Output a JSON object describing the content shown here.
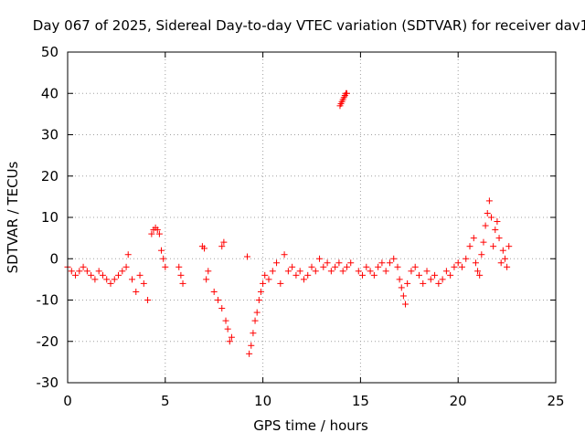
{
  "chart_data": {
    "type": "scatter",
    "title": "Day 067 of 2025, Sidereal Day-to-day VTEC variation (SDTVAR) for receiver dav1",
    "xlabel": "GPS time / hours",
    "ylabel": "SDTVAR / TECUs",
    "xlim": [
      0,
      25
    ],
    "ylim": [
      -30,
      50
    ],
    "xticks": [
      0,
      5,
      10,
      15,
      20,
      25
    ],
    "yticks": [
      -30,
      -20,
      -10,
      0,
      10,
      20,
      30,
      40,
      50
    ],
    "grid": true,
    "marker": "+",
    "series_color": "#ff0000",
    "segments": [
      {
        "x": [
          0.0,
          0.2,
          0.4,
          0.6,
          0.8,
          1.0,
          1.2,
          1.4,
          1.6,
          1.8,
          2.0,
          2.2,
          2.4,
          2.6,
          2.8,
          3.0
        ],
        "y": [
          -2,
          -3,
          -4,
          -3,
          -2,
          -3,
          -4,
          -5,
          -3,
          -4,
          -5,
          -6,
          -5,
          -4,
          -3,
          -2
        ]
      },
      {
        "x": [
          3.1,
          3.3,
          3.5,
          3.7,
          3.9,
          4.1
        ],
        "y": [
          1,
          -5,
          -8,
          -4,
          -6,
          -10
        ]
      },
      {
        "x": [
          4.3,
          4.4,
          4.5,
          4.6,
          4.7,
          4.8,
          4.9,
          5.0
        ],
        "y": [
          6,
          7,
          7.5,
          7,
          6,
          2,
          0,
          -2
        ]
      },
      {
        "x": [
          5.7,
          5.8,
          5.9
        ],
        "y": [
          -2,
          -4,
          -6
        ]
      },
      {
        "x": [
          6.9,
          7.0,
          7.1,
          7.2
        ],
        "y": [
          3,
          2.5,
          -5,
          -3
        ]
      },
      {
        "x": [
          7.5,
          7.7,
          7.9
        ],
        "y": [
          -8,
          -10,
          -12
        ]
      },
      {
        "x": [
          7.9,
          8.0
        ],
        "y": [
          3,
          4
        ]
      },
      {
        "x": [
          8.1,
          8.2,
          8.3,
          8.4
        ],
        "y": [
          -15,
          -17,
          -20,
          -19
        ]
      },
      {
        "x": [
          9.2
        ],
        "y": [
          0.5
        ]
      },
      {
        "x": [
          9.3,
          9.4,
          9.5,
          9.6,
          9.7,
          9.8,
          9.9,
          10.0
        ],
        "y": [
          -23,
          -21,
          -18,
          -15,
          -13,
          -10,
          -8,
          -6
        ]
      },
      {
        "x": [
          10.1,
          10.3,
          10.5,
          10.7,
          10.9,
          11.1,
          11.3,
          11.5,
          11.7,
          11.9,
          12.1,
          12.3,
          12.5,
          12.7
        ],
        "y": [
          -4,
          -5,
          -3,
          -1,
          -6,
          1,
          -3,
          -2,
          -4,
          -3,
          -5,
          -4,
          -2,
          -3
        ]
      },
      {
        "x": [
          12.9,
          13.1,
          13.3,
          13.5,
          13.7,
          13.9,
          14.1,
          14.3,
          14.5
        ],
        "y": [
          0,
          -2,
          -1,
          -3,
          -2,
          -1,
          -3,
          -2,
          -1
        ]
      },
      {
        "x": [
          13.95,
          14.0,
          14.05,
          14.1,
          14.15,
          14.2,
          14.25,
          14.3
        ],
        "y": [
          37,
          37.5,
          38,
          38.5,
          39,
          39.5,
          40,
          40
        ]
      },
      {
        "x": [
          14.9,
          15.1,
          15.3,
          15.5,
          15.7,
          15.9,
          16.1,
          16.3,
          16.5,
          16.7
        ],
        "y": [
          -3,
          -4,
          -2,
          -3,
          -4,
          -2,
          -1,
          -3,
          -1,
          0
        ]
      },
      {
        "x": [
          16.9,
          17.0,
          17.1,
          17.2,
          17.3,
          17.4,
          17.6,
          17.8,
          18.0,
          18.2
        ],
        "y": [
          -2,
          -5,
          -7,
          -9,
          -11,
          -6,
          -3,
          -2,
          -4,
          -6
        ]
      },
      {
        "x": [
          18.4,
          18.6,
          18.8,
          19.0,
          19.2,
          19.4,
          19.6,
          19.8,
          20.0,
          20.2,
          20.4,
          20.6,
          20.8
        ],
        "y": [
          -3,
          -5,
          -4,
          -6,
          -5,
          -3,
          -4,
          -2,
          -1,
          -2,
          0,
          3,
          5
        ]
      },
      {
        "x": [
          20.9,
          21.0,
          21.1,
          21.2,
          21.3,
          21.4,
          21.5,
          21.6,
          21.7,
          21.8
        ],
        "y": [
          -1,
          -3,
          -4,
          1,
          4,
          8,
          11,
          14,
          10,
          3
        ]
      },
      {
        "x": [
          21.9,
          22.0,
          22.1,
          22.2,
          22.3,
          22.4,
          22.5,
          22.6
        ],
        "y": [
          7,
          9,
          5,
          -1,
          2,
          0,
          -2,
          3
        ]
      }
    ]
  }
}
